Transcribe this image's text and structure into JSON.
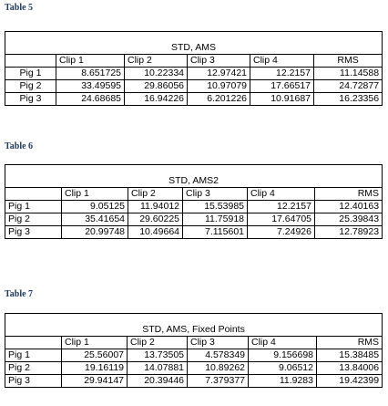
{
  "tables": [
    {
      "caption": "Table 5",
      "title": "STD, AMS",
      "columns": [
        "Clip 1",
        "Clip 2",
        "Clip 3",
        "Clip 4",
        "RMS"
      ],
      "rows": [
        {
          "label": "Pig 1",
          "values": [
            "8.651725",
            "10.22334",
            "12.97421",
            "12.2157",
            "11.14588"
          ]
        },
        {
          "label": "Pig 2",
          "values": [
            "33.49595",
            "29.86056",
            "10.97079",
            "17.66517",
            "24.72877"
          ]
        },
        {
          "label": "Pig 3",
          "values": [
            "24.68685",
            "16.94226",
            "6.201226",
            "10.91687",
            "16.23356"
          ]
        }
      ]
    },
    {
      "caption": "Table 6",
      "title": "STD, AMS2",
      "columns": [
        "Clip 1",
        "Clip 2",
        "Clip 3",
        "Clip 4",
        "RMS"
      ],
      "rows": [
        {
          "label": "Pig 1",
          "values": [
            "9.05125",
            "11.94012",
            "15.53985",
            "12.2157",
            "12.40163"
          ]
        },
        {
          "label": "Pig 2",
          "values": [
            "35.41654",
            "29.60225",
            "11.75918",
            "17.64705",
            "25.39843"
          ]
        },
        {
          "label": "Pig 3",
          "values": [
            "20.99748",
            "10.49664",
            "7.115601",
            "7.24926",
            "12.78923"
          ]
        }
      ]
    },
    {
      "caption": "Table 7",
      "title": "STD, AMS, Fixed Points",
      "columns": [
        "Clip 1",
        "Clip 2",
        "Clip 3",
        "Clip 4",
        "RMS"
      ],
      "rows": [
        {
          "label": "Pig 1",
          "values": [
            "25.56007",
            "13.73505",
            "4.578349",
            "9.156698",
            "15.38485"
          ]
        },
        {
          "label": "Pig 2",
          "values": [
            "19.16119",
            "14.07881",
            "10.89262",
            "9.06512",
            "13.84006"
          ]
        },
        {
          "label": "Pig 3",
          "values": [
            "29.94147",
            "20.39446",
            "7.379377",
            "11.9283",
            "19.42399"
          ]
        }
      ]
    }
  ]
}
